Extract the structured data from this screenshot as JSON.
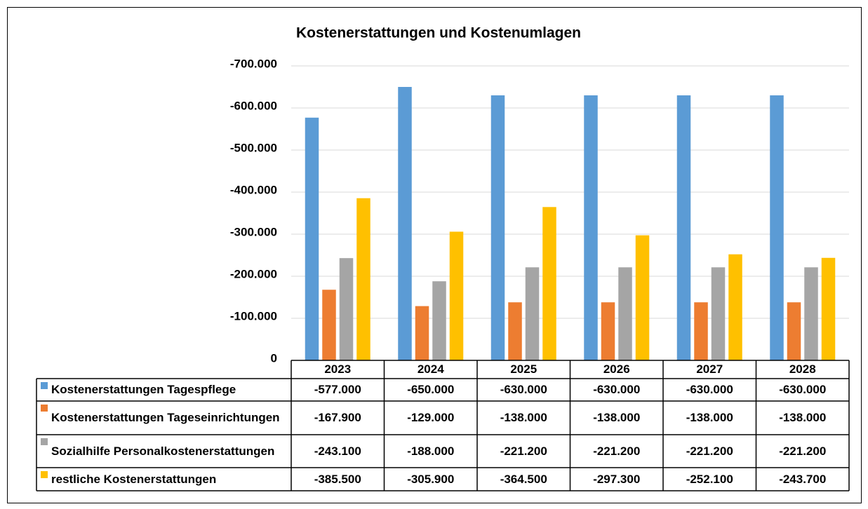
{
  "chart_data": {
    "type": "bar",
    "title": "Kostenerstattungen und Kostenumlagen",
    "categories": [
      "2023",
      "2024",
      "2025",
      "2026",
      "2027",
      "2028"
    ],
    "series": [
      {
        "name": "Kostenerstattungen Tagespflege",
        "color": "#5b9bd5",
        "values": [
          -577000,
          -650000,
          -630000,
          -630000,
          -630000,
          -630000
        ],
        "value_labels": [
          "-577.000",
          "-650.000",
          "-630.000",
          "-630.000",
          "-630.000",
          "-630.000"
        ]
      },
      {
        "name": "Kostenerstattungen Tageseinrichtungen",
        "color": "#ed7d31",
        "values": [
          -167900,
          -129000,
          -138000,
          -138000,
          -138000,
          -138000
        ],
        "value_labels": [
          "-167.900",
          "-129.000",
          "-138.000",
          "-138.000",
          "-138.000",
          "-138.000"
        ]
      },
      {
        "name": "Sozialhilfe Personalkostenerstattungen",
        "color": "#a5a5a5",
        "values": [
          -243100,
          -188000,
          -221200,
          -221200,
          -221200,
          -221200
        ],
        "value_labels": [
          "-243.100",
          "-188.000",
          "-221.200",
          "-221.200",
          "-221.200",
          "-221.200"
        ]
      },
      {
        "name": "restliche Kostenerstattungen",
        "color": "#ffc000",
        "values": [
          -385500,
          -305900,
          -364500,
          -297300,
          -252100,
          -243700
        ],
        "value_labels": [
          "-385.500",
          "-305.900",
          "-364.500",
          "-297.300",
          "-252.100",
          "-243.700"
        ]
      }
    ],
    "ylim": [
      0,
      -700000
    ],
    "yticks": [
      0,
      {
        "value": -100000,
        "label": "-100.000"
      },
      {
        "value": -200000,
        "label": "-200.000"
      },
      {
        "value": -300000,
        "label": "-300.000"
      },
      {
        "value": -400000,
        "label": "-400.000"
      },
      {
        "value": -500000,
        "label": "-500.000"
      },
      {
        "value": -600000,
        "label": "-600.000"
      },
      {
        "value": -700000,
        "label": "-700.000"
      }
    ],
    "grid": true
  }
}
